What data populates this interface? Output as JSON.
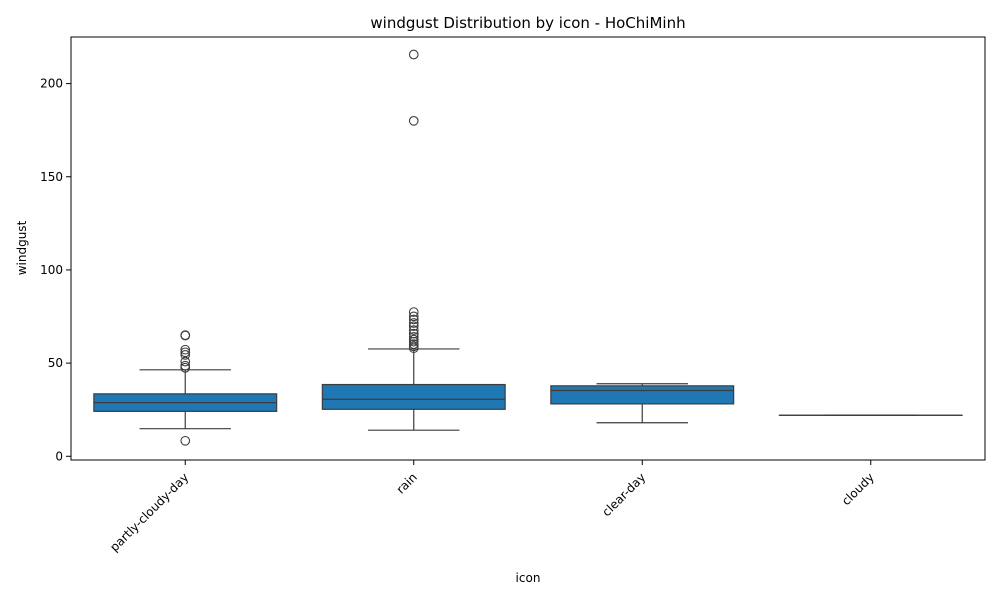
{
  "chart_data": {
    "type": "box",
    "title": "windgust Distribution by icon - HoChiMinh",
    "xlabel": "icon",
    "ylabel": "windgust",
    "ylim": [
      -2,
      225
    ],
    "yticks": [
      0,
      50,
      100,
      150,
      200
    ],
    "grid": false,
    "box_color": "#1f77b4",
    "line_color": "#3d3d3d",
    "categories": [
      "partly-cloudy-day",
      "rain",
      "clear-day",
      "cloudy"
    ],
    "boxes": [
      {
        "category": "partly-cloudy-day",
        "whisker_low": 14.8,
        "q1": 24.1,
        "median": 28.8,
        "q3": 33.5,
        "whisker_high": 46.4,
        "outliers": [
          8.3,
          47.5,
          48.6,
          50.8,
          54.4,
          55.8,
          57.2,
          64.8,
          65.0
        ]
      },
      {
        "category": "rain",
        "whisker_low": 14.0,
        "q1": 25.2,
        "median": 30.6,
        "q3": 38.5,
        "whisker_high": 57.6,
        "outliers": [
          58.0,
          59.0,
          60.2,
          61.5,
          62.6,
          64.1,
          65.8,
          67.7,
          69.8,
          71.5,
          73.4,
          75.1,
          77.4,
          180.0,
          215.6
        ]
      },
      {
        "category": "clear-day",
        "whisker_low": 18.0,
        "q1": 28.1,
        "median": 35.3,
        "q3": 37.8,
        "whisker_high": 38.9,
        "outliers": []
      },
      {
        "category": "cloudy",
        "whisker_low": 22.0,
        "q1": 22.0,
        "median": 22.0,
        "q3": 22.0,
        "whisker_high": 22.0,
        "outliers": []
      }
    ]
  }
}
